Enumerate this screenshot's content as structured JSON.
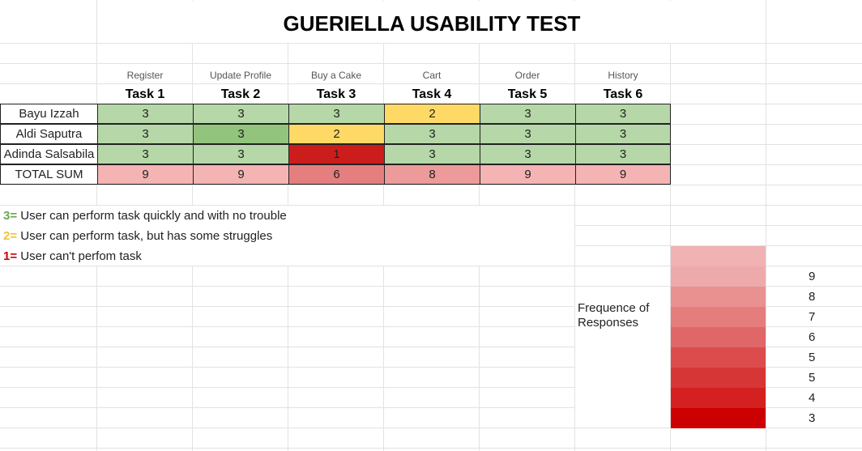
{
  "title": "GUERIELLA USABILITY TEST",
  "tasks": [
    {
      "subtitle": "Register",
      "label": "Task 1"
    },
    {
      "subtitle": "Update Profile",
      "label": "Task 2"
    },
    {
      "subtitle": "Buy a Cake",
      "label": "Task 3"
    },
    {
      "subtitle": "Cart",
      "label": "Task 4"
    },
    {
      "subtitle": "Order",
      "label": "Task 5"
    },
    {
      "subtitle": "History",
      "label": "Task 6"
    }
  ],
  "rows": [
    {
      "name": "Bayu Izzah",
      "values": [
        "3",
        "3",
        "3",
        "2",
        "3",
        "3"
      ]
    },
    {
      "name": "Aldi Saputra",
      "values": [
        "3",
        "3",
        "2",
        "3",
        "3",
        "3"
      ]
    },
    {
      "name": "Adinda Salsabila",
      "values": [
        "3",
        "3",
        "1",
        "3",
        "3",
        "3"
      ]
    }
  ],
  "total": {
    "label": "TOTAL SUM",
    "values": [
      "9",
      "9",
      "6",
      "8",
      "9",
      "9"
    ]
  },
  "legend": [
    {
      "key": "3=",
      "text": " User can perform task quickly and with no trouble",
      "color": "#6aa84f"
    },
    {
      "key": "2=",
      "text": " User can perform task, but has some struggles",
      "color": "#f1c232"
    },
    {
      "key": "1=",
      "text": " User can't perfom task",
      "color": "#cc0000"
    }
  ],
  "frequency": {
    "label": "Frequence of Responses",
    "numbers": [
      "9",
      "8",
      "7",
      "6",
      "5",
      "5",
      "4",
      "3"
    ]
  },
  "colors": {
    "green": "#b6d7a8",
    "dark_green": "#93c47d",
    "yellow": "#ffd966",
    "red": "#cc1d1d",
    "total_9": "#f4b4b4",
    "total_8": "#ec9a9a",
    "total_6": "#e57f7f",
    "scale": [
      "#f0b2b2",
      "#eeaaaa",
      "#e99191",
      "#e57d7d",
      "#e06767",
      "#dc4c4c",
      "#d73636",
      "#d42020",
      "#cc0000"
    ]
  }
}
